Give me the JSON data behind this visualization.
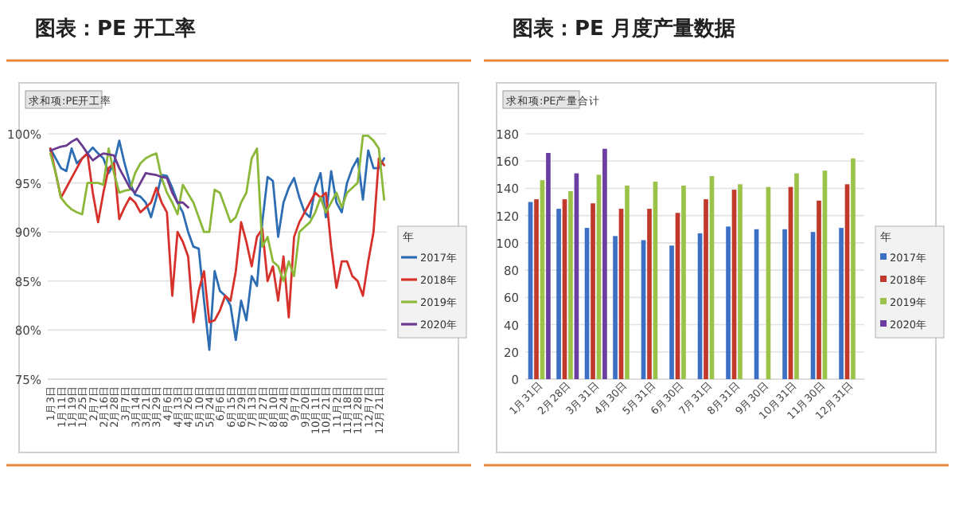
{
  "chart_data": [
    {
      "type": "line",
      "title": "图表：PE 开工率",
      "subtitle": "求和项:PE开工率",
      "legend_title": "年",
      "legend": "right",
      "grid": "y",
      "ylim": [
        75,
        100
      ],
      "yticks": [
        {
          "value": 75,
          "label": "75%"
        },
        {
          "value": 80,
          "label": "80%"
        },
        {
          "value": 85,
          "label": "85%"
        },
        {
          "value": 90,
          "label": "90%"
        },
        {
          "value": 95,
          "label": "95%"
        },
        {
          "value": 100,
          "label": "100%"
        }
      ],
      "categories": [
        "1月3日",
        null,
        "1月11日",
        null,
        "1月19日",
        null,
        "1月25日",
        null,
        "2月7日",
        null,
        "2月16日",
        null,
        "2月28日",
        null,
        "3月7日",
        null,
        "3月14日",
        null,
        "3月21日",
        null,
        "3月29日",
        null,
        "4月6日",
        null,
        "4月13日",
        null,
        "4月26日",
        null,
        "5月10日",
        null,
        "5月24日",
        null,
        "6月6日",
        null,
        "6月15日",
        null,
        "6月29日",
        null,
        "7月13日",
        null,
        "7月27日",
        null,
        "8月10日",
        null,
        "8月24日",
        null,
        "9月7日",
        null,
        "9月20日",
        null,
        "10月11日",
        null,
        "10月21日",
        null,
        "11月2日",
        null,
        "11月18日",
        null,
        "11月28日",
        null,
        "12月7日",
        null,
        "12月21日",
        null
      ],
      "series": [
        {
          "name": "2017年",
          "color": "#2e6db4",
          "values": [
            98.5,
            97.5,
            96.5,
            96.2,
            98.5,
            97,
            97.5,
            98,
            98.6,
            98,
            97.5,
            96,
            97,
            99.3,
            97,
            95,
            93.8,
            93.6,
            93,
            91.5,
            93.5,
            95.8,
            95.7,
            94.5,
            93,
            92,
            90,
            88.5,
            88.3,
            83,
            78,
            86,
            84,
            83.5,
            82.5,
            79,
            83,
            81,
            85.5,
            84.5,
            91,
            95.6,
            95.2,
            89.5,
            93,
            94.5,
            95.5,
            93.5,
            92,
            91.5,
            94.5,
            96,
            91.5,
            96.2,
            93,
            92,
            95,
            96.5,
            97.5,
            93.3,
            98.3,
            96.5,
            96.5,
            97.5
          ]
        },
        {
          "name": "2018年",
          "color": "#d6312b",
          "values": [
            98.5,
            96,
            93.5,
            94.5,
            95.5,
            96.5,
            97.5,
            98,
            94,
            91,
            94,
            96.5,
            97,
            91.3,
            92.5,
            93.5,
            93,
            92,
            92.5,
            93,
            94.5,
            93,
            92,
            83.5,
            90,
            89,
            87.5,
            80.8,
            84,
            86,
            80.8,
            81,
            82,
            83.5,
            83,
            86,
            91,
            89,
            86.5,
            89.5,
            90.3,
            85,
            86.5,
            83,
            87.5,
            81.3,
            89.5,
            91,
            92,
            93,
            94,
            93.5,
            94,
            88.5,
            84.3,
            87,
            87,
            85.5,
            85,
            83.5,
            87,
            90,
            97.5,
            96.8
          ]
        },
        {
          "name": "2019年",
          "color": "#8cb83a",
          "values": [
            98,
            96,
            93.5,
            92.8,
            92.3,
            92,
            91.8,
            95,
            95,
            95,
            94.8,
            98.5,
            96,
            94,
            94.2,
            94.3,
            96,
            97,
            97.5,
            97.8,
            98,
            95.5,
            94,
            93,
            91.8,
            94.8,
            93.9,
            93,
            91.5,
            90,
            90,
            94.3,
            94,
            92.5,
            91,
            91.5,
            93,
            94,
            97.5,
            98.5,
            88.5,
            89.5,
            87,
            86.5,
            85,
            87,
            85.5,
            90,
            90.5,
            91,
            92,
            93.5,
            92,
            93,
            94,
            92.5,
            94,
            94.5,
            95,
            99.8,
            99.8,
            99.3,
            98.5,
            93.3
          ]
        },
        {
          "name": "2020年",
          "color": "#6a3a8e",
          "values": [
            98.3,
            98.5,
            98.7,
            98.8,
            99.2,
            99.5,
            98.8,
            98,
            97.3,
            97.7,
            98,
            97.9,
            97.8,
            96.5,
            95.5,
            94.5,
            94,
            95,
            96,
            95.9,
            95.8,
            95.6,
            95.5,
            94,
            93,
            93,
            92.5,
            null,
            null,
            null,
            null,
            null,
            null,
            null,
            null,
            null,
            null,
            null,
            null,
            null,
            null,
            null,
            null,
            null,
            null,
            null,
            null,
            null,
            null,
            null,
            null,
            null,
            null,
            null,
            null,
            null,
            null,
            null,
            null,
            null,
            null,
            null,
            null,
            null
          ]
        }
      ]
    },
    {
      "type": "bar",
      "title": "图表：PE 月度产量数据",
      "subtitle": "求和项:PE产量合计",
      "legend_title": "年",
      "legend": "right",
      "grid": "y",
      "ylim": [
        0,
        180
      ],
      "yticks": [
        0,
        20,
        40,
        60,
        80,
        100,
        120,
        140,
        160,
        180
      ],
      "categories": [
        "1月31日",
        "2月28日",
        "3月31日",
        "4月30日",
        "5月31日",
        "6月30日",
        "7月31日",
        "8月31日",
        "9月30日",
        "10月31日",
        "11月30日",
        "12月31日"
      ],
      "series": [
        {
          "name": "2017年",
          "color": "#3d6fc4",
          "values": [
            130,
            125,
            111,
            105,
            102,
            98,
            107,
            112,
            110,
            110,
            108,
            111
          ]
        },
        {
          "name": "2018年",
          "color": "#c0392b",
          "values": [
            132,
            132,
            129,
            125,
            125,
            122,
            132,
            139,
            null,
            141,
            131,
            143
          ]
        },
        {
          "name": "2019年",
          "color": "#9bc34a",
          "values": [
            146,
            138,
            150,
            142,
            145,
            142,
            149,
            143,
            141,
            151,
            153,
            162
          ]
        },
        {
          "name": "2020年",
          "color": "#6b3fa0",
          "values": [
            166,
            151,
            169,
            null,
            null,
            null,
            null,
            null,
            null,
            null,
            null,
            null
          ]
        }
      ]
    }
  ]
}
